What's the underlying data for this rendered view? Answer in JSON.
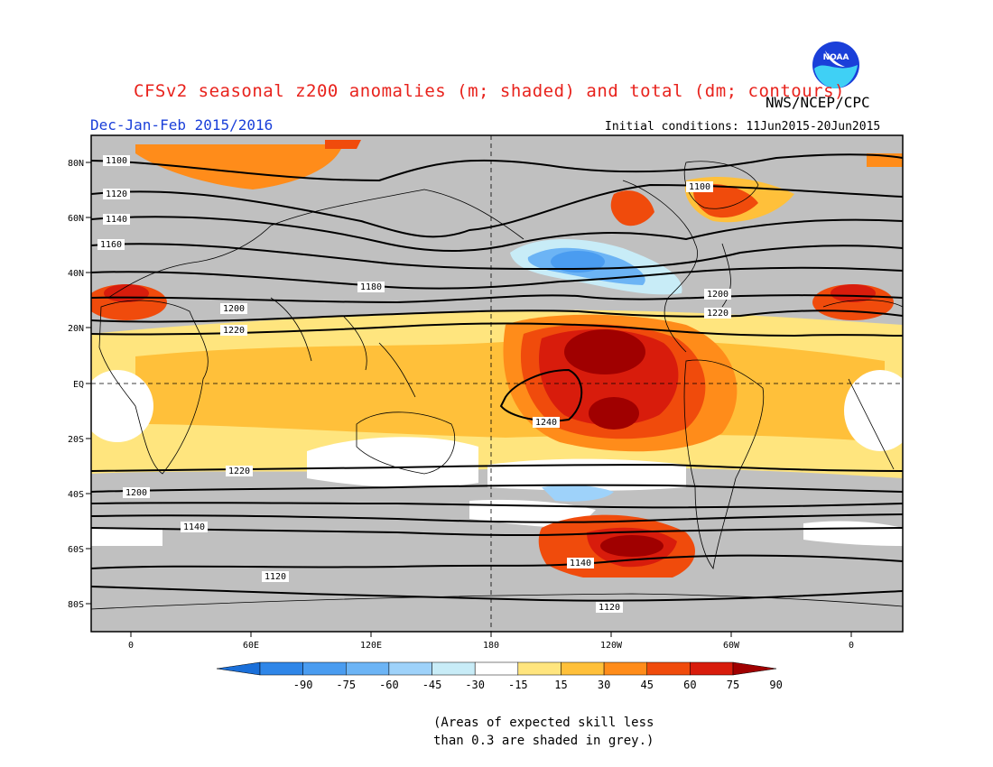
{
  "header": {
    "title": "CFSv2 seasonal z200 anomalies (m; shaded) and total (dm; contours)",
    "agency": "NWS/NCEP/CPC",
    "season": "Dec-Jan-Feb 2015/2016",
    "initial_conditions": "Initial conditions: 11Jun2015-20Jun2015",
    "logo_text": "NOAA"
  },
  "map": {
    "lon_labels": [
      "0",
      "60E",
      "120E",
      "180",
      "120W",
      "60W",
      "0"
    ],
    "lat_labels": [
      "80N",
      "60N",
      "40N",
      "20N",
      "EQ",
      "20S",
      "40S",
      "60S",
      "80S"
    ],
    "contour_labels": [
      "1100",
      "1120",
      "1140",
      "1160",
      "1180",
      "1200",
      "1220",
      "1240"
    ]
  },
  "colorbar": {
    "tick_labels": [
      "-90",
      "-75",
      "-60",
      "-45",
      "-30",
      "-15",
      "15",
      "30",
      "45",
      "60",
      "75",
      "90"
    ],
    "colors": [
      "#1a6fd9",
      "#2f86e8",
      "#4a9cf0",
      "#6cb4f5",
      "#9ed2fa",
      "#c8ecf7",
      "#ffffff",
      "#ffe57e",
      "#ffc03a",
      "#ff8c1a",
      "#f04b0c",
      "#d81c0c",
      "#a00000"
    ]
  },
  "footnote": {
    "line1": "(Areas of expected skill less",
    "line2": "than 0.3 are shaded in grey.)"
  },
  "colors": {
    "grey_mask": "#c0c0c0",
    "contour": "#000000",
    "coast": "#000000"
  }
}
